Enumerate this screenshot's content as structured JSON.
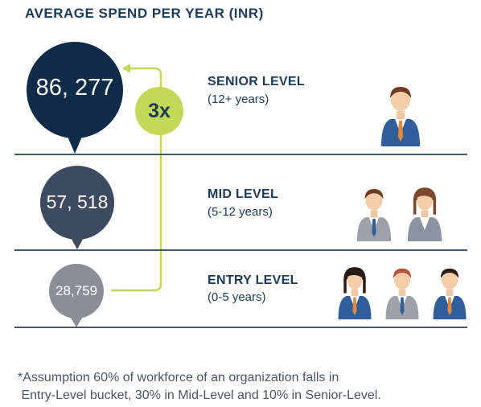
{
  "title": "AVERAGE SPEND PER YEAR (INR)",
  "multiplier": "3x",
  "levels": [
    {
      "name": "SENIOR LEVEL",
      "years": "(12+ years)",
      "spend": "86, 277"
    },
    {
      "name": "MID LEVEL",
      "years": "(5-12 years)",
      "spend": "57, 518"
    },
    {
      "name": "ENTRY LEVEL",
      "years": "(0-5 years)",
      "spend": "28,759"
    }
  ],
  "footnote_line1": "*Assumption 60% of workforce of an organization falls in",
  "footnote_line2": " Entry-Level bucket, 30% in Mid-Level and 10% in Senior-Level.",
  "colors": {
    "senior_bubble": "#0f2b47",
    "mid_bubble": "#3d4a60",
    "entry_bubble": "#8a8e98",
    "accent": "#c3d857",
    "divider": "#44566b"
  },
  "icons": [
    "person-icon"
  ]
}
